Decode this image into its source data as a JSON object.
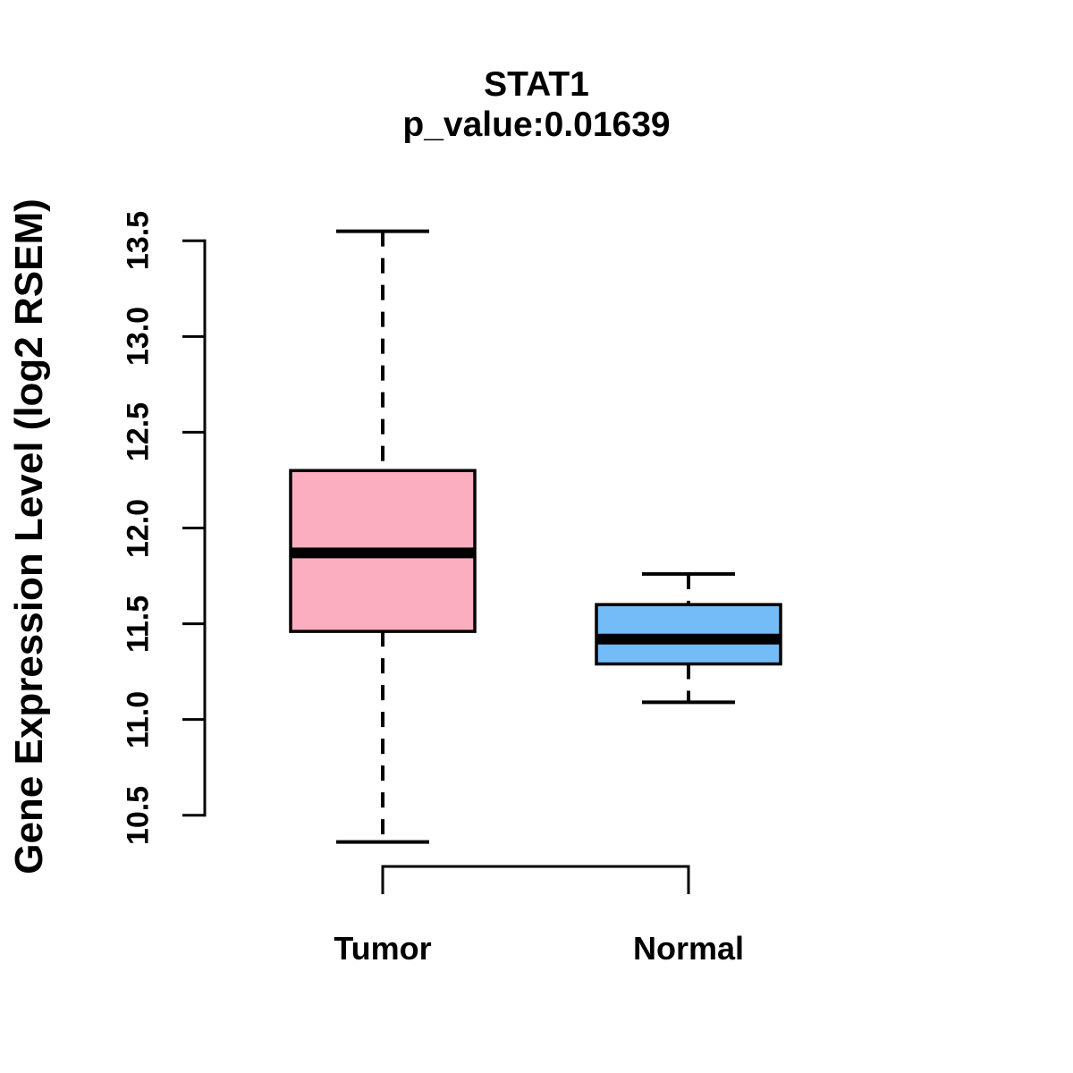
{
  "chart_data": {
    "type": "boxplot",
    "title": "STAT1",
    "subtitle": "p_value:0.01639",
    "ylabel": "Gene Expression Level (log2 RSEM)",
    "ylim": [
      10.5,
      13.5
    ],
    "ytick_values": [
      13.5,
      13.0,
      12.5,
      12.0,
      11.5,
      11.0,
      10.5
    ],
    "yticks": [
      "13.5",
      "13.0",
      "12.5",
      "12.0",
      "11.5",
      "11.0",
      "10.5"
    ],
    "categories": [
      "Tumor",
      "Normal"
    ],
    "grid": false,
    "legend_position": "none",
    "series": [
      {
        "name": "Tumor",
        "color": "#FCAEC1",
        "whisker_low": 10.36,
        "q1": 11.46,
        "median": 11.87,
        "q3": 12.3,
        "whisker_high": 13.55
      },
      {
        "name": "Normal",
        "color": "#73BCF7",
        "whisker_low": 11.09,
        "q1": 11.29,
        "median": 11.42,
        "q3": 11.6,
        "whisker_high": 11.76
      }
    ]
  },
  "colors": {
    "stroke": "#000000",
    "background": "#FFFFFF",
    "text": "#000000"
  }
}
